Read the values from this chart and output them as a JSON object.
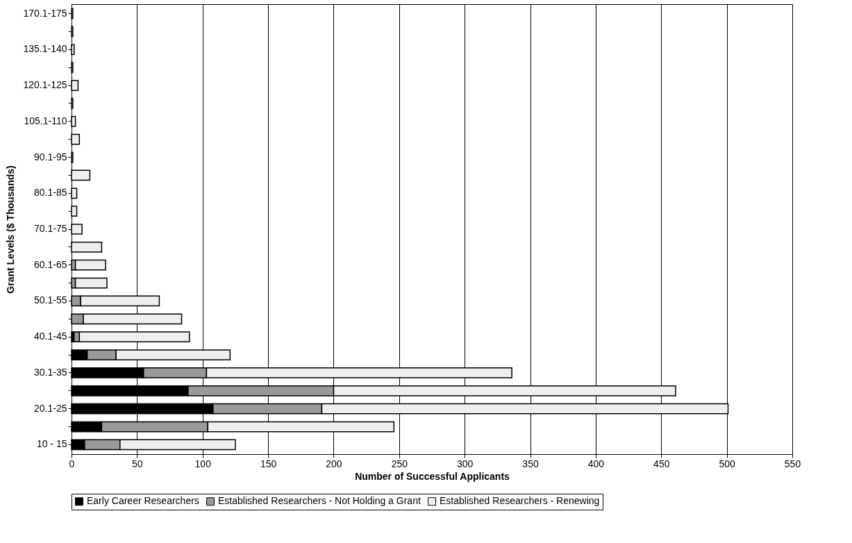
{
  "chart_data": {
    "type": "bar",
    "orientation": "horizontal",
    "stacked": true,
    "xlabel": "Number of Successful Applicants",
    "ylabel": "Grant Levels ($ Thousands)",
    "categories": [
      "170.1-175",
      null,
      "135.1-140",
      null,
      "120.1-125",
      null,
      "105.1-110",
      null,
      "90.1-95",
      null,
      "80.1-85",
      null,
      "70.1-75",
      null,
      "60.1-65",
      null,
      "50.1-55",
      null,
      "40.1-45",
      null,
      "30.1-35",
      null,
      "20.1-25",
      null,
      "10 - 15"
    ],
    "series": [
      {
        "name": "Early Career Researchers",
        "color": "#000000",
        "values": [
          null,
          null,
          null,
          null,
          null,
          null,
          null,
          null,
          null,
          null,
          null,
          null,
          null,
          null,
          null,
          null,
          null,
          null,
          2,
          12,
          55,
          89,
          108,
          23,
          10
        ]
      },
      {
        "name": "Established Researchers - Not Holding a Grant",
        "color": "#999999",
        "values": [
          null,
          null,
          null,
          null,
          null,
          null,
          null,
          null,
          null,
          null,
          null,
          null,
          null,
          null,
          3,
          3,
          7,
          9,
          4,
          22,
          48,
          111,
          83,
          81,
          27
        ]
      },
      {
        "name": "Established Researchers - Renewing",
        "color": "#eeeeee",
        "values": [
          1,
          1,
          2,
          1,
          5,
          1,
          3,
          6,
          1,
          14,
          4,
          4,
          8,
          23,
          23,
          24,
          60,
          75,
          84,
          87,
          233,
          261,
          310,
          142,
          88
        ]
      }
    ],
    "xlim": [
      0,
      550
    ],
    "xticks": [
      0,
      50,
      100,
      150,
      200,
      250,
      300,
      350,
      400,
      450,
      500,
      550
    ],
    "grid": "x",
    "legend": "bottom"
  }
}
